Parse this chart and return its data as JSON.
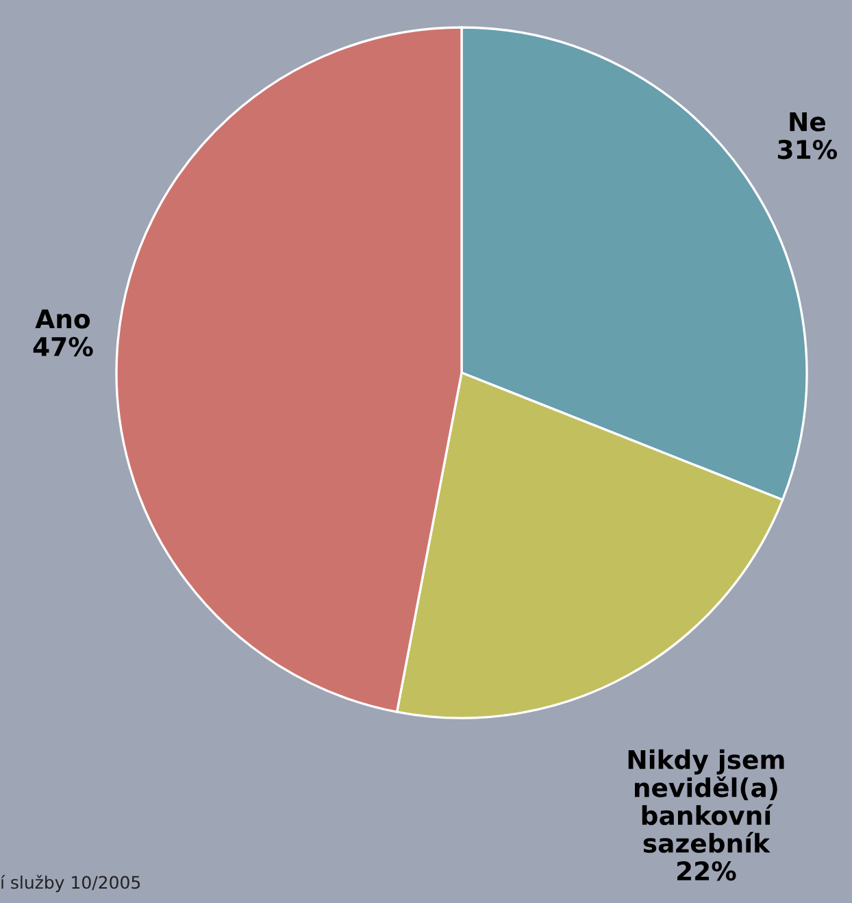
{
  "chart_data": {
    "type": "pie",
    "categories": [
      "Ne",
      "Nikdy jsem\nneviděl(a)\nbankovní\nsazebník",
      "Ano"
    ],
    "values": [
      31,
      22,
      47
    ],
    "value_labels": [
      "31%",
      "22%",
      "47%"
    ],
    "colors": [
      "#679fad",
      "#c2bf5f",
      "#cd736e"
    ],
    "annotations": [
      "í služby 10/2005"
    ]
  }
}
